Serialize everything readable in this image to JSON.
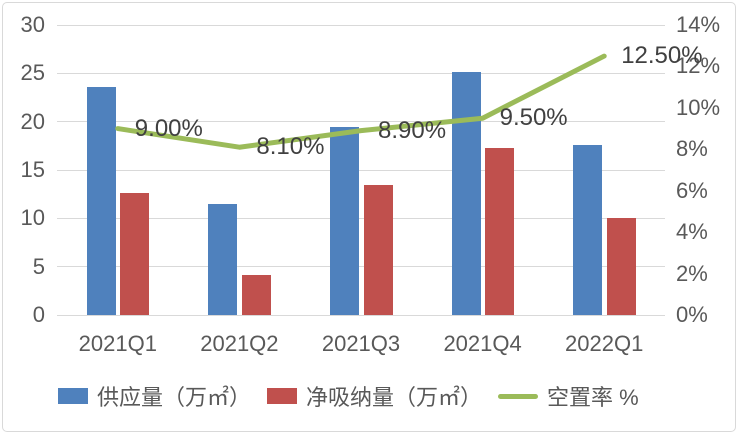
{
  "chart_data": {
    "type": "combo-bar-line",
    "categories": [
      "2021Q1",
      "2021Q2",
      "2021Q3",
      "2021Q4",
      "2022Q1"
    ],
    "series": [
      {
        "name": "供应量（万㎡）",
        "type": "bar",
        "axis": "left",
        "color": "#4F81BD",
        "values": [
          23.6,
          11.5,
          19.5,
          25.1,
          17.6
        ]
      },
      {
        "name": "净吸纳量（万㎡）",
        "type": "bar",
        "axis": "left",
        "color": "#C0504D",
        "values": [
          12.6,
          4.1,
          13.5,
          17.3,
          10.0
        ]
      },
      {
        "name": "空置率 %",
        "type": "line",
        "axis": "right",
        "color": "#9BBB59",
        "values": [
          9.0,
          8.1,
          8.9,
          9.5,
          12.5
        ],
        "point_labels": [
          "9.00%",
          "8.10%",
          "8.90%",
          "9.50%",
          "12.50%"
        ]
      }
    ],
    "left_axis": {
      "min": 0,
      "max": 30,
      "step": 5,
      "ticks": [
        "0",
        "5",
        "10",
        "15",
        "20",
        "25",
        "30"
      ]
    },
    "right_axis": {
      "min": 0,
      "max": 14,
      "step": 2,
      "ticks": [
        "0%",
        "2%",
        "4%",
        "6%",
        "8%",
        "10%",
        "12%",
        "14%"
      ]
    },
    "grid": true,
    "legend_position": "bottom",
    "title": ""
  },
  "colors": {
    "gridline": "#d9d9d9",
    "axis_text": "#595959",
    "point_label_text": "#404040",
    "frame_border": "#d9d9d9",
    "background": "#ffffff"
  }
}
